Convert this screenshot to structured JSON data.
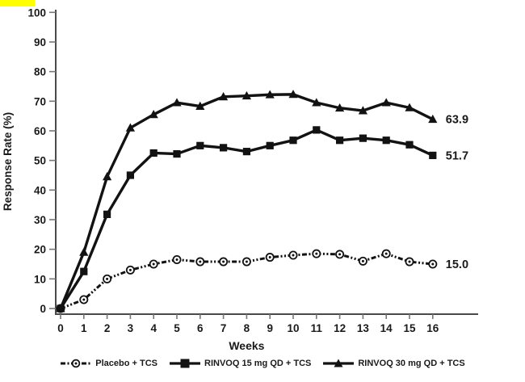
{
  "colors": {
    "line": "#121212",
    "axis": "#4a4a4a",
    "tick": "#777777",
    "text": "#1a1a1a",
    "highlight": "#ffff00",
    "background": "#ffffff"
  },
  "chart_data": {
    "type": "line",
    "title": "",
    "xlabel": "Weeks",
    "ylabel": "Response Rate (%)",
    "xlim": [
      0,
      16
    ],
    "ylim": [
      0,
      100
    ],
    "grid": false,
    "legend_position": "bottom",
    "x_ticks": [
      0,
      1,
      2,
      3,
      4,
      5,
      6,
      7,
      8,
      9,
      10,
      11,
      12,
      13,
      14,
      15,
      16
    ],
    "y_ticks": [
      0,
      10,
      20,
      30,
      40,
      50,
      60,
      70,
      80,
      90,
      100
    ],
    "x": [
      0,
      1,
      2,
      3,
      4,
      5,
      6,
      7,
      8,
      9,
      10,
      11,
      12,
      13,
      14,
      15,
      16
    ],
    "series": [
      {
        "name": "Placebo + TCS",
        "line": "dashed",
        "marker": "circle-dot",
        "end_label": "15.0",
        "values": [
          0,
          3,
          10,
          13,
          15,
          16.5,
          15.8,
          15.8,
          15.8,
          17.3,
          18,
          18.5,
          18.3,
          16,
          18.5,
          15.8,
          15.0
        ]
      },
      {
        "name": "RINVOQ 15 mg QD + TCS",
        "line": "solid",
        "marker": "square",
        "end_label": "51.7",
        "values": [
          0,
          12.5,
          31.8,
          45,
          52.5,
          52.2,
          55,
          54.3,
          53,
          55,
          56.8,
          60.3,
          56.8,
          57.5,
          56.8,
          55.3,
          51.7
        ]
      },
      {
        "name": "RINVOQ 30 mg QD + TCS",
        "line": "solid",
        "marker": "triangle",
        "end_label": "63.9",
        "values": [
          0,
          19,
          44.5,
          61,
          65.5,
          69.5,
          68.3,
          71.5,
          71.8,
          72.2,
          72.3,
          69.5,
          67.7,
          66.8,
          69.5,
          67.8,
          63.9
        ]
      }
    ]
  },
  "legend": {
    "items": [
      {
        "label": "Placebo + TCS"
      },
      {
        "label": "RINVOQ 15 mg QD + TCS"
      },
      {
        "label": "RINVOQ 30 mg QD + TCS"
      }
    ]
  }
}
